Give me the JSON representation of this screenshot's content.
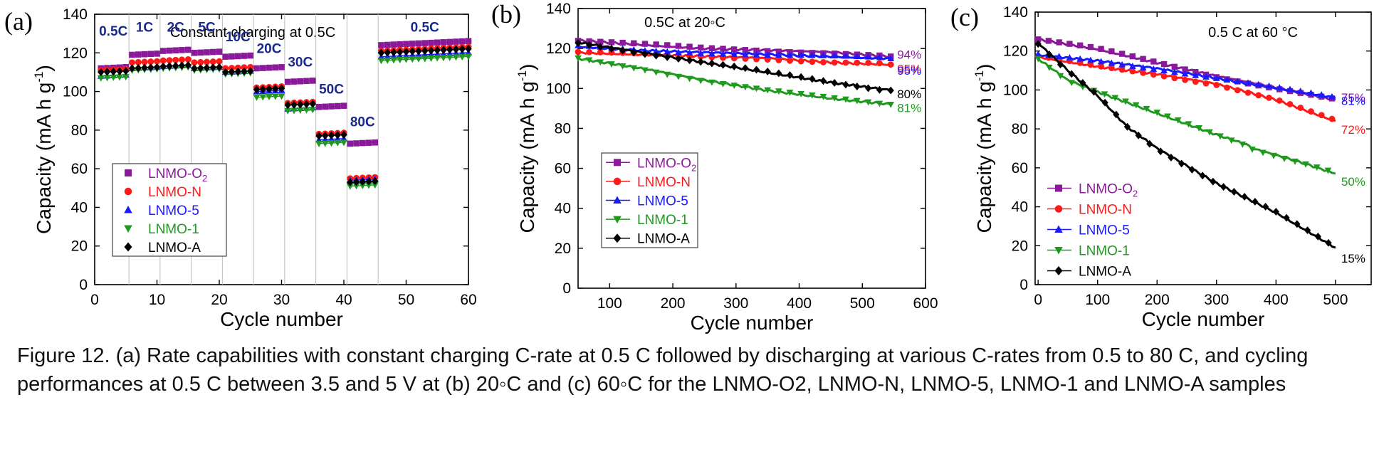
{
  "caption": "Figure 12. (a) Rate capabilities with constant charging C-rate at 0.5 C followed by discharging at various C-rates from 0.5 to 80 C, and cycling performances at 0.5 C between 3.5 and 5 V at (b) 20◦C and (c) 60◦C for the LNMO-O2, LNMO-N, LNMO-5, LNMO-1 and LNMO-A samples",
  "series_styles": [
    {
      "key": "O2",
      "color": "#8B1A9B",
      "marker": "square"
    },
    {
      "key": "N",
      "color": "#FF1A1A",
      "marker": "circle"
    },
    {
      "key": "5",
      "color": "#1A1AFF",
      "marker": "triangle-up"
    },
    {
      "key": "1",
      "color": "#1F9A1F",
      "marker": "triangle-down"
    },
    {
      "key": "A",
      "color": "#000000",
      "marker": "diamond"
    }
  ],
  "chart_data": [
    {
      "panel": "(a)",
      "type": "scatter",
      "title": "Constant charging at 0.5C",
      "xlabel": "Cycle number",
      "ylabel_main": "Capacity (mA h g",
      "ylabel_sup": "-1",
      "ylabel_end": ")",
      "xlim": [
        0,
        60
      ],
      "ylim": [
        0,
        140
      ],
      "xticks": [
        0,
        10,
        20,
        30,
        40,
        50,
        60
      ],
      "yticks": [
        0,
        20,
        40,
        60,
        80,
        100,
        120,
        140
      ],
      "grid": false,
      "legend_position": "lower-left",
      "legend": [
        {
          "label": "LNMO-O",
          "sub": "2"
        },
        {
          "label": "LNMO-N",
          "sub": ""
        },
        {
          "label": "LNMO-5",
          "sub": ""
        },
        {
          "label": "LNMO-1",
          "sub": ""
        },
        {
          "label": "LNMO-A",
          "sub": ""
        }
      ],
      "rate_labels": [
        {
          "text": "0.5C",
          "x": 3,
          "y": 129
        },
        {
          "text": "1C",
          "x": 8,
          "y": 131
        },
        {
          "text": "2C",
          "x": 13,
          "y": 131
        },
        {
          "text": "5C",
          "x": 18,
          "y": 131
        },
        {
          "text": "10C",
          "x": 23,
          "y": 126
        },
        {
          "text": "20C",
          "x": 28,
          "y": 120
        },
        {
          "text": "30C",
          "x": 33,
          "y": 113
        },
        {
          "text": "50C",
          "x": 38,
          "y": 99
        },
        {
          "text": "80C",
          "x": 43,
          "y": 82
        },
        {
          "text": "0.5C",
          "x": 53,
          "y": 131
        }
      ],
      "segments": [
        {
          "start": 1,
          "end": 5,
          "values": [
            112,
            111,
            108,
            107,
            110
          ]
        },
        {
          "start": 6,
          "end": 10,
          "values": [
            119,
            115,
            112,
            111,
            112
          ]
        },
        {
          "start": 11,
          "end": 15,
          "values": [
            121,
            116,
            113,
            112,
            113
          ]
        },
        {
          "start": 16,
          "end": 20,
          "values": [
            120,
            115,
            112,
            111,
            112
          ]
        },
        {
          "start": 21,
          "end": 25,
          "values": [
            118,
            112,
            110,
            109,
            110
          ]
        },
        {
          "start": 26,
          "end": 30,
          "values": [
            112,
            102,
            100,
            97,
            101
          ]
        },
        {
          "start": 31,
          "end": 35,
          "values": [
            105,
            94,
            91,
            90,
            93
          ]
        },
        {
          "start": 36,
          "end": 40,
          "values": [
            92,
            78,
            75,
            73,
            77
          ]
        },
        {
          "start": 41,
          "end": 45,
          "values": [
            73,
            55,
            54,
            51,
            53
          ]
        },
        {
          "start": 46,
          "end": 60,
          "values": [
            124,
            121,
            118,
            116,
            120
          ]
        }
      ],
      "series": [
        {
          "name": "LNMO-O2",
          "key": "O2",
          "offset": 0
        },
        {
          "name": "LNMO-N",
          "key": "N",
          "offset": 1
        },
        {
          "name": "LNMO-5",
          "key": "5",
          "offset": 2
        },
        {
          "name": "LNMO-1",
          "key": "1",
          "offset": 3
        },
        {
          "name": "LNMO-A",
          "key": "A",
          "offset": 4
        }
      ]
    },
    {
      "panel": "(b)",
      "type": "line",
      "title": "0.5C at 20◦C",
      "xlabel": "Cycle number",
      "ylabel_main": "Capacity (mA h g",
      "ylabel_sup": "-1",
      "ylabel_end": ")",
      "xlim": [
        50,
        600
      ],
      "ylim": [
        0,
        140
      ],
      "xticks": [
        100,
        200,
        300,
        400,
        500,
        600
      ],
      "yticks": [
        0,
        20,
        40,
        60,
        80,
        100,
        120,
        140
      ],
      "grid": false,
      "legend_position": "lower-left",
      "legend": [
        {
          "label": "LNMO-O",
          "sub": "2"
        },
        {
          "label": "LNMO-N",
          "sub": ""
        },
        {
          "label": "LNMO-5",
          "sub": ""
        },
        {
          "label": "LNMO-1",
          "sub": ""
        },
        {
          "label": "LNMO-A",
          "sub": ""
        }
      ],
      "series": [
        {
          "name": "LNMO-O2",
          "key": "O2",
          "x": [
            50,
            150,
            250,
            350,
            450,
            545
          ],
          "y": [
            124,
            122,
            120,
            119,
            118,
            116
          ],
          "end_label": "94%"
        },
        {
          "name": "LNMO-N",
          "key": "N",
          "x": [
            50,
            150,
            250,
            350,
            450,
            545
          ],
          "y": [
            118,
            117,
            116,
            115,
            113,
            112
          ],
          "end_label": "95%"
        },
        {
          "name": "LNMO-5",
          "key": "5",
          "x": [
            50,
            150,
            250,
            350,
            450,
            545
          ],
          "y": [
            121,
            119,
            118,
            117,
            116,
            115
          ],
          "end_label": "95%"
        },
        {
          "name": "LNMO-1",
          "key": "1",
          "x": [
            50,
            150,
            250,
            350,
            450,
            545
          ],
          "y": [
            115,
            110,
            104,
            99,
            95,
            92
          ],
          "end_label": "81%"
        },
        {
          "name": "LNMO-A",
          "key": "A",
          "x": [
            50,
            150,
            250,
            350,
            450,
            545
          ],
          "y": [
            123,
            118,
            113,
            108,
            103,
            99
          ],
          "end_label": "80%"
        }
      ]
    },
    {
      "panel": "(c)",
      "type": "line",
      "title": "0.5 C at 60 °C",
      "xlabel": "Cycle number",
      "ylabel_main": "Capacity (mA h g",
      "ylabel_sup": "-1",
      "ylabel_end": ")",
      "xlim": [
        -5,
        560
      ],
      "ylim": [
        0,
        140
      ],
      "xticks": [
        0,
        100,
        200,
        300,
        400,
        500
      ],
      "yticks": [
        0,
        20,
        40,
        60,
        80,
        100,
        120,
        140
      ],
      "grid": false,
      "legend_position": "lower-left",
      "legend": [
        {
          "label": "LNMO-O",
          "sub": "2"
        },
        {
          "label": "LNMO-N",
          "sub": ""
        },
        {
          "label": "LNMO-5",
          "sub": ""
        },
        {
          "label": "LNMO-1",
          "sub": ""
        },
        {
          "label": "LNMO-A",
          "sub": ""
        }
      ],
      "series": [
        {
          "name": "LNMO-O2",
          "key": "O2",
          "x": [
            0,
            100,
            200,
            300,
            400,
            500
          ],
          "y": [
            126,
            121,
            114,
            107,
            101,
            95
          ],
          "end_label": "75%"
        },
        {
          "name": "LNMO-N",
          "key": "N",
          "x": [
            0,
            100,
            200,
            300,
            400,
            500
          ],
          "y": [
            117,
            112,
            108,
            103,
            95,
            84
          ],
          "end_label": "72%"
        },
        {
          "name": "LNMO-5",
          "key": "5",
          "x": [
            0,
            100,
            200,
            300,
            400,
            500
          ],
          "y": [
            118,
            115,
            111,
            106,
            101,
            96
          ],
          "end_label": "81%"
        },
        {
          "name": "LNMO-1",
          "key": "1",
          "x": [
            0,
            50,
            100,
            200,
            300,
            350,
            360,
            450,
            500
          ],
          "y": [
            116,
            105,
            99,
            88,
            77,
            72,
            70,
            62,
            57
          ],
          "end_label": "50%"
        },
        {
          "name": "LNMO-A",
          "key": "A",
          "x": [
            0,
            50,
            100,
            150,
            200,
            300,
            400,
            500
          ],
          "y": [
            124,
            110,
            97,
            81,
            70,
            52,
            37,
            19
          ],
          "end_label": "15%"
        }
      ]
    }
  ]
}
